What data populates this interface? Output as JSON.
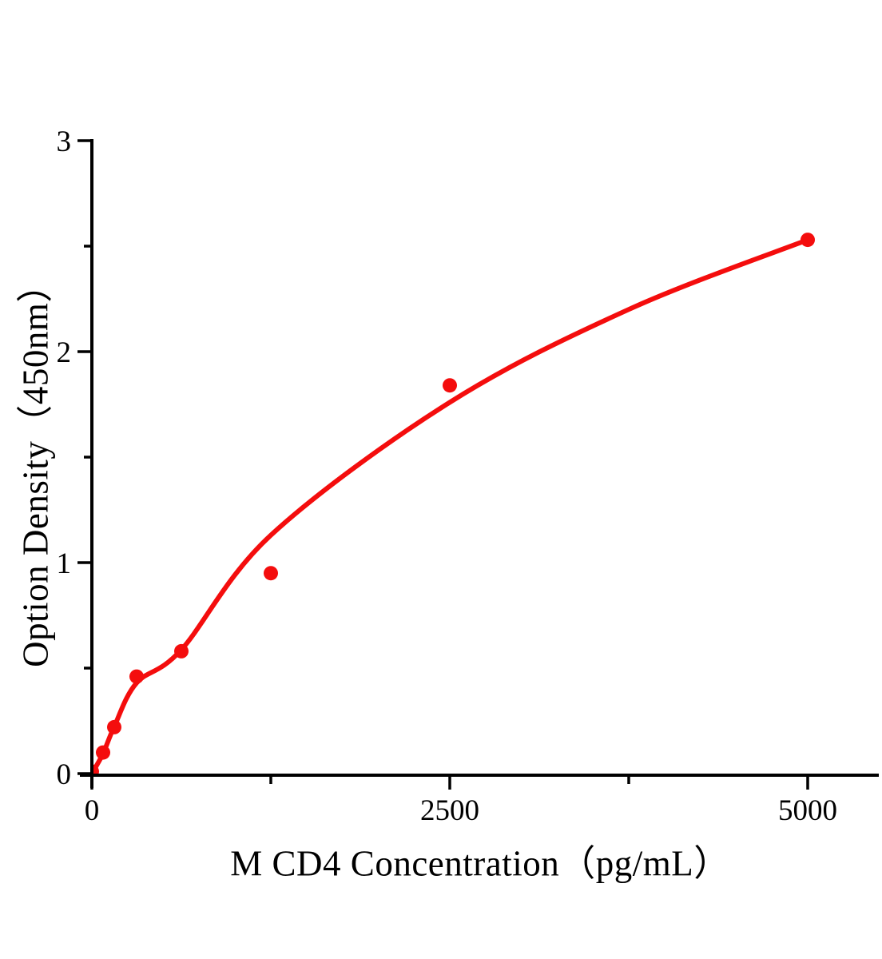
{
  "page": {
    "background_color": "#ffffff",
    "text_color": "#000000"
  },
  "chart_data": {
    "type": "scatter",
    "title": "",
    "xlabel": "M CD4 Concentration（pg/mL）",
    "ylabel": "Option Density（450nm）",
    "xlim": [
      0,
      5500
    ],
    "ylim": [
      0,
      3
    ],
    "grid": false,
    "legend": false,
    "axis_color": "#000000",
    "accent_color": "#f40d0d",
    "x_axis": {
      "major_ticks": [
        {
          "value": 0,
          "label": "0"
        },
        {
          "value": 2500,
          "label": "2500"
        },
        {
          "value": 5000,
          "label": "5000"
        }
      ],
      "minor_ticks": [
        1250,
        3750
      ]
    },
    "y_axis": {
      "major_ticks": [
        {
          "value": 0,
          "label": "0"
        },
        {
          "value": 1,
          "label": "1"
        },
        {
          "value": 2,
          "label": "2"
        },
        {
          "value": 3,
          "label": "3"
        }
      ],
      "minor_ticks": [
        0.5,
        1.5,
        2.5
      ]
    },
    "series": [
      {
        "name": "standard-points",
        "type": "scatter",
        "color": "#f40d0d",
        "marker": "circle",
        "points": [
          {
            "x": 0,
            "y": 0.01
          },
          {
            "x": 78.125,
            "y": 0.1
          },
          {
            "x": 156.25,
            "y": 0.22
          },
          {
            "x": 312.5,
            "y": 0.46
          },
          {
            "x": 625,
            "y": 0.58
          },
          {
            "x": 1250,
            "y": 0.95
          },
          {
            "x": 2500,
            "y": 1.84
          },
          {
            "x": 5000,
            "y": 2.53
          }
        ]
      },
      {
        "name": "fitted-curve",
        "type": "line",
        "color": "#f40d0d",
        "points": [
          {
            "x": 0,
            "y": 0.0
          },
          {
            "x": 78.125,
            "y": 0.095
          },
          {
            "x": 156.25,
            "y": 0.223
          },
          {
            "x": 312.5,
            "y": 0.43
          },
          {
            "x": 625,
            "y": 0.587
          },
          {
            "x": 1250,
            "y": 1.13
          },
          {
            "x": 2500,
            "y": 1.76
          },
          {
            "x": 3750,
            "y": 2.2
          },
          {
            "x": 5000,
            "y": 2.53
          }
        ]
      }
    ]
  }
}
